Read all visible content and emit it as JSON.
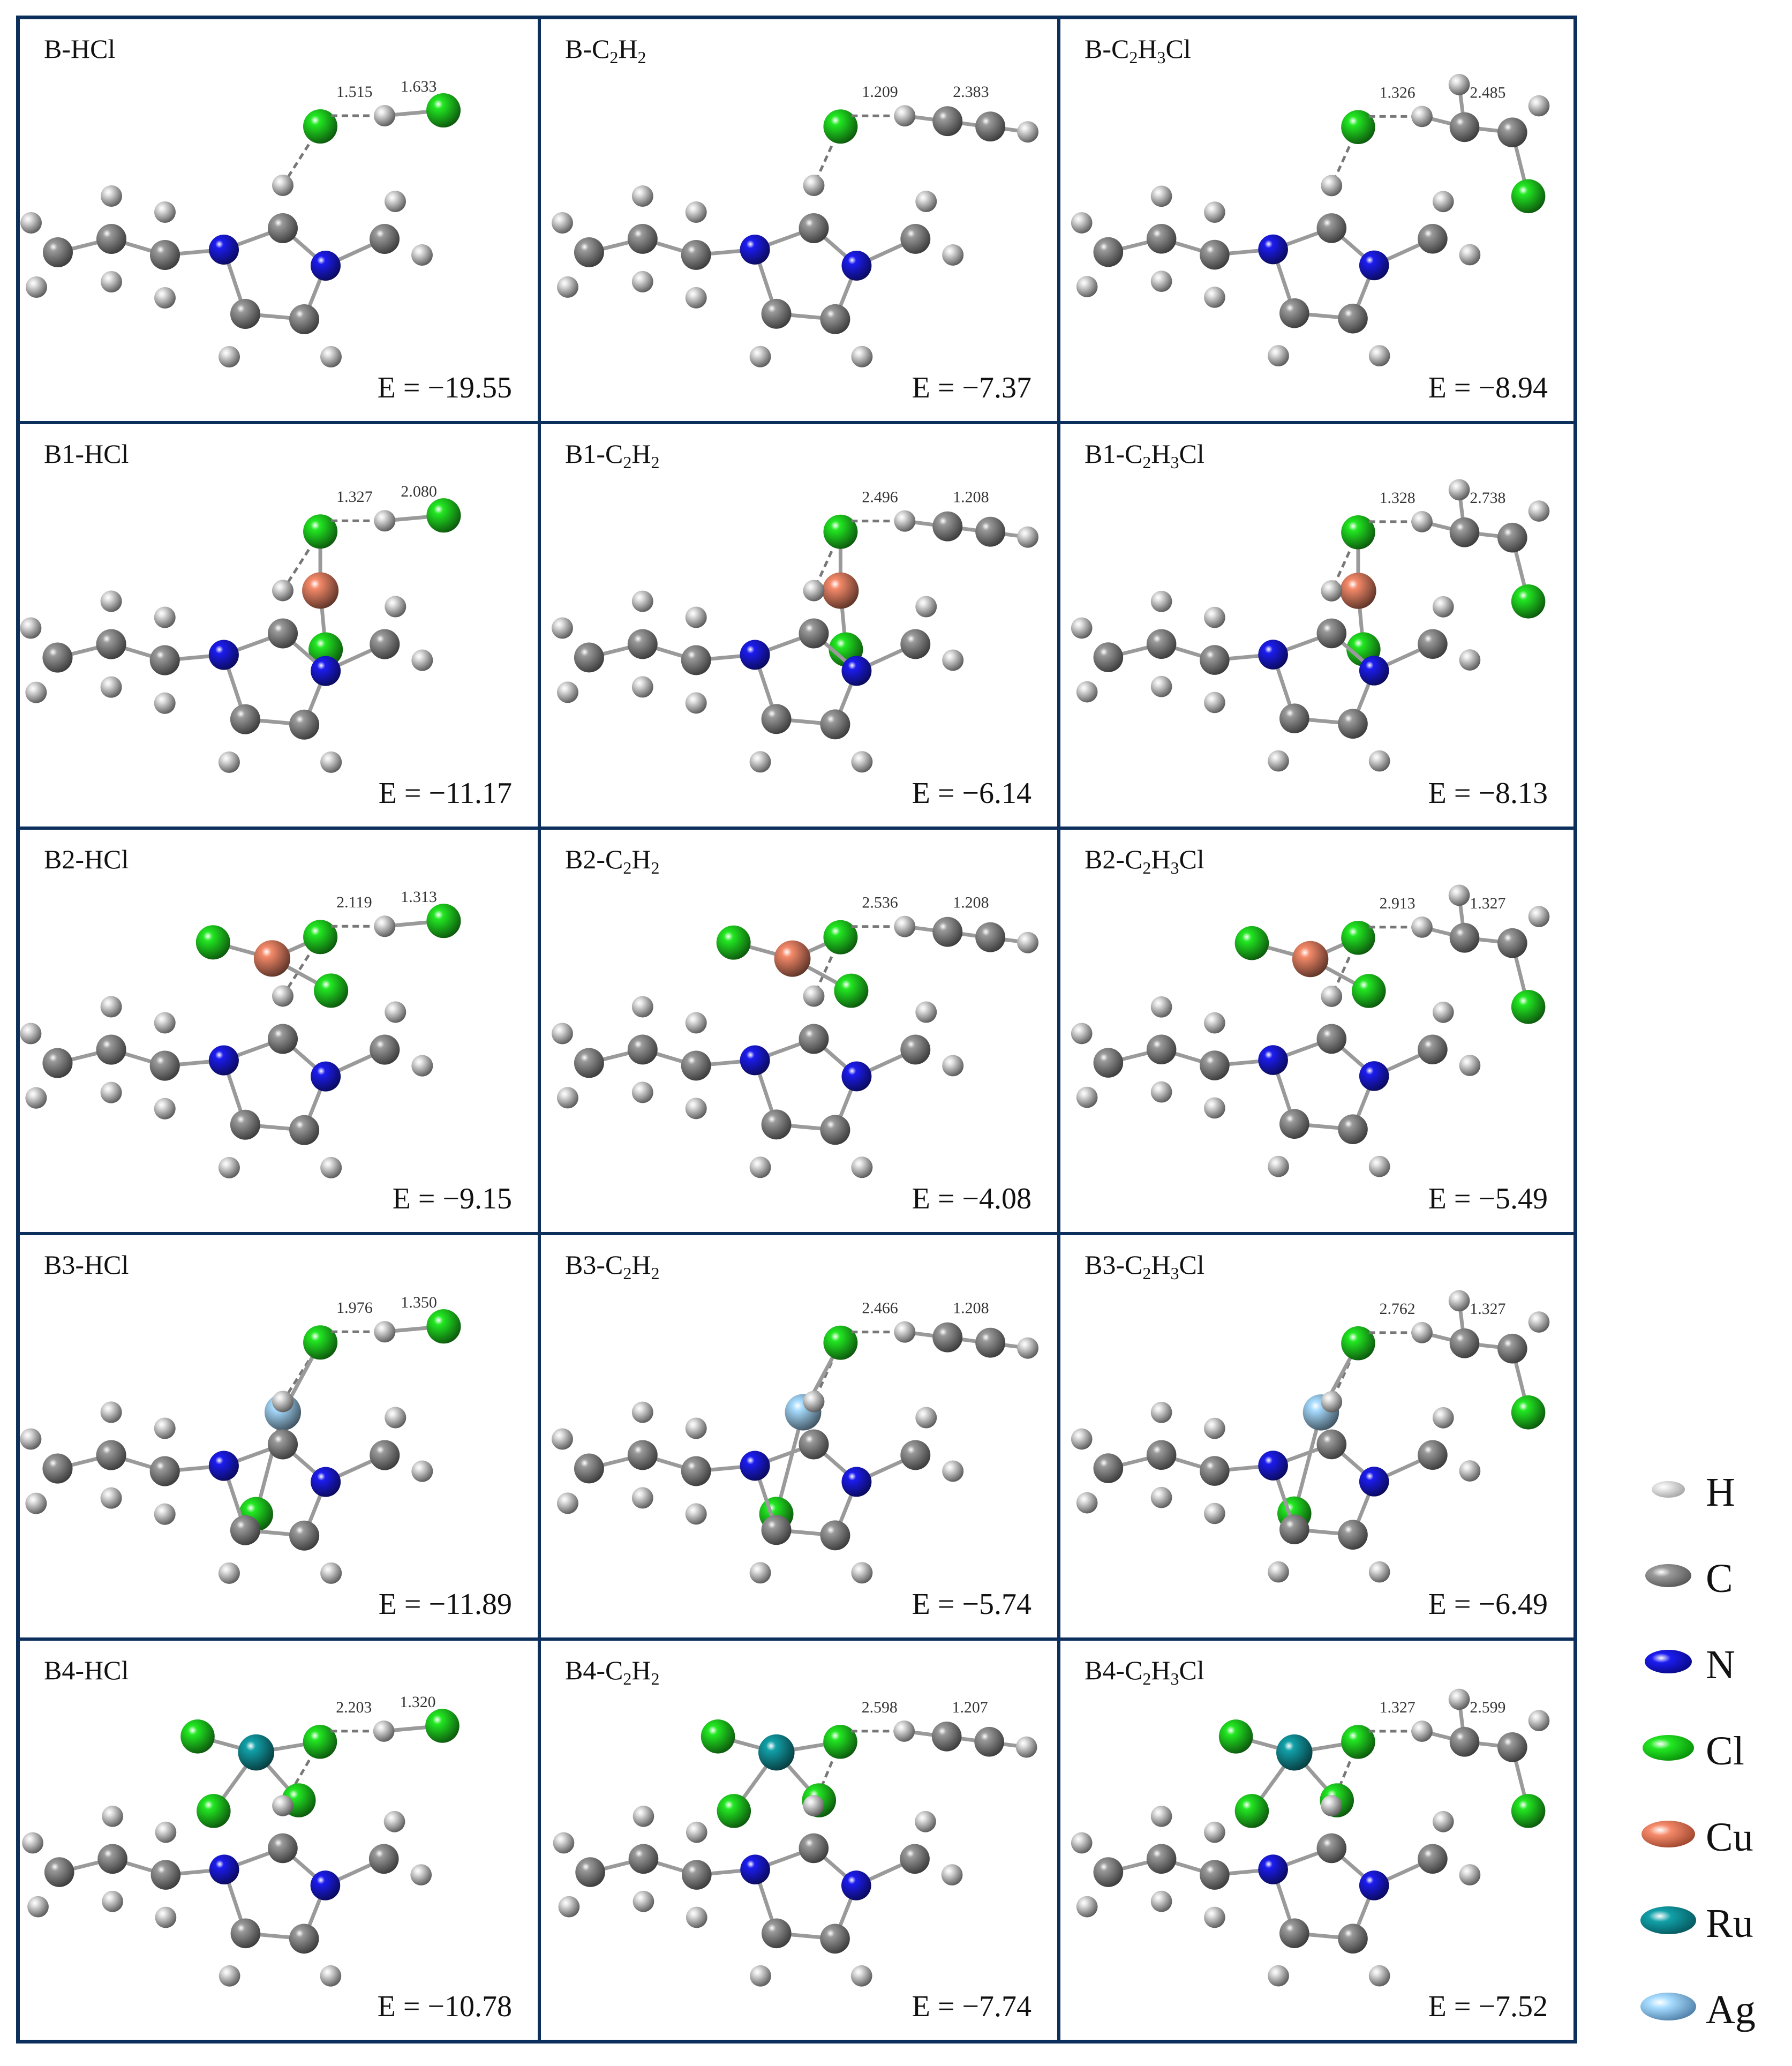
{
  "figure": {
    "columns": [
      "HCl",
      "C2H2",
      "C2H3Cl"
    ],
    "rows": [
      "B",
      "B1",
      "B2",
      "B3",
      "B4"
    ],
    "energy_prefix": "E = ",
    "cells": [
      {
        "id": "B-HCl",
        "base": "B",
        "adsorbate": "HCl",
        "label": "B-HCl",
        "label_parts": [
          [
            "B-HCl",
            ""
          ]
        ],
        "energy": "−19.55",
        "bond_lengths": [
          "1.515",
          "1.633"
        ]
      },
      {
        "id": "B-C2H2",
        "base": "B",
        "adsorbate": "C2H2",
        "label": "B-C2H2",
        "label_parts": [
          [
            "B-C",
            ""
          ],
          [
            "2",
            "sub"
          ],
          [
            "H",
            ""
          ],
          [
            "2",
            "sub"
          ]
        ],
        "energy": "−7.37",
        "bond_lengths": [
          "1.209",
          "2.383"
        ]
      },
      {
        "id": "B-C2H3Cl",
        "base": "B",
        "adsorbate": "C2H3Cl",
        "label": "B-C2H3Cl",
        "label_parts": [
          [
            "B-C",
            ""
          ],
          [
            "2",
            "sub"
          ],
          [
            "H",
            ""
          ],
          [
            "3",
            "sub"
          ],
          [
            "Cl",
            ""
          ]
        ],
        "energy": "−8.94",
        "bond_lengths": [
          "1.326",
          "2.485"
        ]
      },
      {
        "id": "B1-HCl",
        "base": "B1",
        "adsorbate": "HCl",
        "label": "B1-HCl",
        "label_parts": [
          [
            "B1-HCl",
            ""
          ]
        ],
        "energy": "−11.17",
        "bond_lengths": [
          "1.327",
          "2.080"
        ]
      },
      {
        "id": "B1-C2H2",
        "base": "B1",
        "adsorbate": "C2H2",
        "label": "B1-C2H2",
        "label_parts": [
          [
            "B1-C",
            ""
          ],
          [
            "2",
            "sub"
          ],
          [
            "H",
            ""
          ],
          [
            "2",
            "sub"
          ]
        ],
        "energy": "−6.14",
        "bond_lengths": [
          "2.496",
          "1.208"
        ]
      },
      {
        "id": "B1-C2H3Cl",
        "base": "B1",
        "adsorbate": "C2H3Cl",
        "label": "B1-C2H3Cl",
        "label_parts": [
          [
            "B1-C",
            ""
          ],
          [
            "2",
            "sub"
          ],
          [
            "H",
            ""
          ],
          [
            "3",
            "sub"
          ],
          [
            "Cl",
            ""
          ]
        ],
        "energy": "−8.13",
        "bond_lengths": [
          "1.328",
          "2.738"
        ]
      },
      {
        "id": "B2-HCl",
        "base": "B2",
        "adsorbate": "HCl",
        "label": "B2-HCl",
        "label_parts": [
          [
            "B2-HCl",
            ""
          ]
        ],
        "energy": "−9.15",
        "bond_lengths": [
          "2.119",
          "1.313"
        ]
      },
      {
        "id": "B2-C2H2",
        "base": "B2",
        "adsorbate": "C2H2",
        "label": "B2-C2H2",
        "label_parts": [
          [
            "B2-C",
            ""
          ],
          [
            "2",
            "sub"
          ],
          [
            "H",
            ""
          ],
          [
            "2",
            "sub"
          ]
        ],
        "energy": "−4.08",
        "bond_lengths": [
          "2.536",
          "1.208"
        ]
      },
      {
        "id": "B2-C2H3Cl",
        "base": "B2",
        "adsorbate": "C2H3Cl",
        "label": "B2-C2H3Cl",
        "label_parts": [
          [
            "B2-C",
            ""
          ],
          [
            "2",
            "sub"
          ],
          [
            "H",
            ""
          ],
          [
            "3",
            "sub"
          ],
          [
            "Cl",
            ""
          ]
        ],
        "energy": "−5.49",
        "bond_lengths": [
          "2.913",
          "1.327"
        ]
      },
      {
        "id": "B3-HCl",
        "base": "B3",
        "adsorbate": "HCl",
        "label": "B3-HCl",
        "label_parts": [
          [
            "B3-HCl",
            ""
          ]
        ],
        "energy": "−11.89",
        "bond_lengths": [
          "1.976",
          "1.350"
        ]
      },
      {
        "id": "B3-C2H2",
        "base": "B3",
        "adsorbate": "C2H2",
        "label": "B3-C2H2",
        "label_parts": [
          [
            "B3-C",
            ""
          ],
          [
            "2",
            "sub"
          ],
          [
            "H",
            ""
          ],
          [
            "2",
            "sub"
          ]
        ],
        "energy": "−5.74",
        "bond_lengths": [
          "2.466",
          "1.208"
        ]
      },
      {
        "id": "B3-C2H3Cl",
        "base": "B3",
        "adsorbate": "C2H3Cl",
        "label": "B3-C2H3Cl",
        "label_parts": [
          [
            "B3-C",
            ""
          ],
          [
            "2",
            "sub"
          ],
          [
            "H",
            ""
          ],
          [
            "3",
            "sub"
          ],
          [
            "Cl",
            ""
          ]
        ],
        "energy": "−6.49",
        "bond_lengths": [
          "2.762",
          "1.327"
        ]
      },
      {
        "id": "B4-HCl",
        "base": "B4",
        "adsorbate": "HCl",
        "label": "B4-HCl",
        "label_parts": [
          [
            "B4-HCl",
            ""
          ]
        ],
        "energy": "−10.78",
        "bond_lengths": [
          "2.203",
          "1.320"
        ]
      },
      {
        "id": "B4-C2H2",
        "base": "B4",
        "adsorbate": "C2H2",
        "label": "B4-C2H2",
        "label_parts": [
          [
            "B4-C",
            ""
          ],
          [
            "2",
            "sub"
          ],
          [
            "H",
            ""
          ],
          [
            "2",
            "sub"
          ]
        ],
        "energy": "−7.74",
        "bond_lengths": [
          "2.598",
          "1.207"
        ]
      },
      {
        "id": "B4-C2H3Cl",
        "base": "B4",
        "adsorbate": "C2H3Cl",
        "label": "B4-C2H3Cl",
        "label_parts": [
          [
            "B4-C",
            ""
          ],
          [
            "2",
            "sub"
          ],
          [
            "H",
            ""
          ],
          [
            "3",
            "sub"
          ],
          [
            "Cl",
            ""
          ]
        ],
        "energy": "−7.52",
        "bond_lengths": [
          "1.327",
          "2.599"
        ]
      }
    ]
  },
  "legend": {
    "items": [
      {
        "symbol": "H",
        "color": "#e6e6e6",
        "shade": "#8a8a8a",
        "size": 62
      },
      {
        "symbol": "C",
        "color": "#9a9a9a",
        "shade": "#3a3a3a",
        "size": 86
      },
      {
        "symbol": "N",
        "color": "#1c1cf0",
        "shade": "#00005a",
        "size": 88
      },
      {
        "symbol": "Cl",
        "color": "#22e822",
        "shade": "#006a00",
        "size": 96
      },
      {
        "symbol": "Cu",
        "color": "#f58a6a",
        "shade": "#7a2a14",
        "size": 100
      },
      {
        "symbol": "Ru",
        "color": "#12a0a8",
        "shade": "#013a40",
        "size": 104
      },
      {
        "symbol": "Ag",
        "color": "#a8dcff",
        "shade": "#2a5a85",
        "size": 104
      }
    ]
  },
  "colors": {
    "frame": "#0d2f5c",
    "H": "#e6e6e6",
    "C": "#9a9a9a",
    "N": "#1c1cf0",
    "Cl": "#22e822",
    "Cu": "#f58a6a",
    "Ru": "#12a0a8",
    "Ag": "#a8dcff"
  }
}
